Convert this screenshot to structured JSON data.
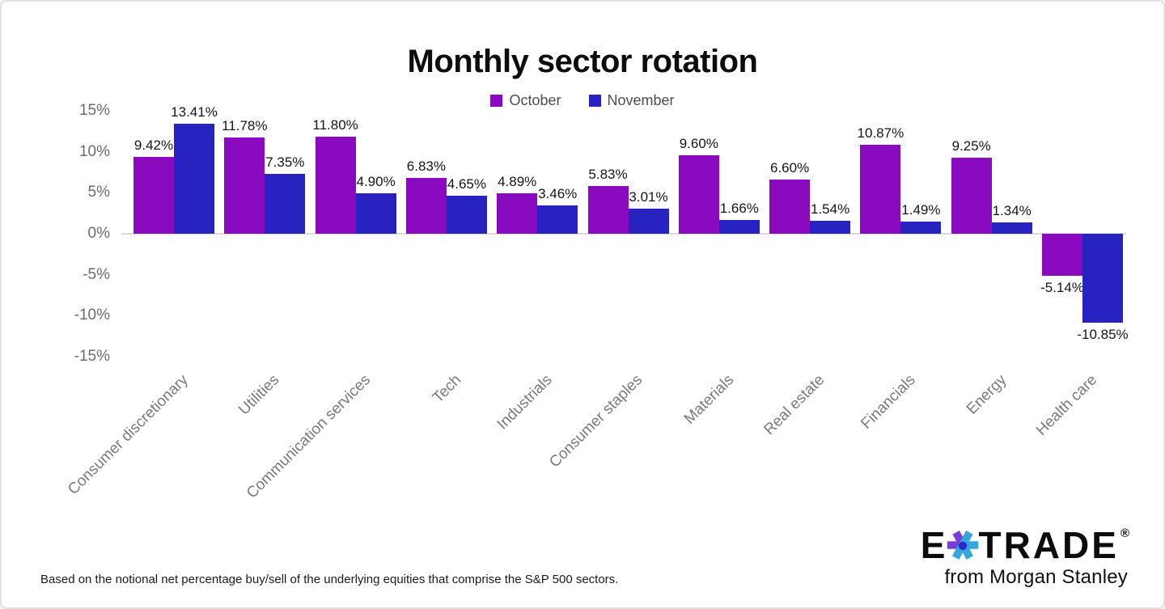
{
  "title": "Monthly sector rotation",
  "legend": {
    "items": [
      {
        "label": "October",
        "color": "#8a0abf"
      },
      {
        "label": "November",
        "color": "#2823c0"
      }
    ]
  },
  "chart_data": {
    "type": "bar",
    "title": "Monthly sector rotation",
    "categories": [
      "Consumer discretionary",
      "Utilities",
      "Communication services",
      "Tech",
      "Industrials",
      "Consumer staples",
      "Materials",
      "Real estate",
      "Financials",
      "Energy",
      "Health care"
    ],
    "series": [
      {
        "name": "October",
        "color": "#8a0abf",
        "values": [
          9.42,
          11.78,
          11.8,
          6.83,
          4.89,
          5.83,
          9.6,
          6.6,
          10.87,
          9.25,
          -5.14
        ],
        "labels": [
          "9.42%",
          "11.78%",
          "11.80%",
          "6.83%",
          "4.89%",
          "5.83%",
          "9.60%",
          "6.60%",
          "10.87%",
          "9.25%",
          "-5.14%"
        ]
      },
      {
        "name": "November",
        "color": "#2823c0",
        "values": [
          13.41,
          7.35,
          4.9,
          4.65,
          3.46,
          3.01,
          1.66,
          1.54,
          1.49,
          1.34,
          -10.85
        ],
        "labels": [
          "13.41%",
          "7.35%",
          "4.90%",
          "4.65%",
          "3.46%",
          "3.01%",
          "1.66%",
          "1.54%",
          "1.49%",
          "1.34%",
          "-10.85%"
        ]
      }
    ],
    "xlabel": "",
    "ylabel": "",
    "ylim": [
      -15,
      15
    ],
    "yticks": [
      {
        "value": 15,
        "label": "15%"
      },
      {
        "value": 10,
        "label": "10%"
      },
      {
        "value": 5,
        "label": "5%"
      },
      {
        "value": 0,
        "label": "0%"
      },
      {
        "value": -5,
        "label": "-5%"
      },
      {
        "value": -10,
        "label": "-10%"
      },
      {
        "value": -15,
        "label": "-15%"
      }
    ],
    "grid": false,
    "legend_position": "top-center",
    "axis_line_color": "#dbdbdb"
  },
  "footnote": "Based on the notional net percentage buy/sell of the underlying equities that comprise the S&P 500 sectors.",
  "logo": {
    "brand_left": "E",
    "brand_right": "TRADE",
    "registered_mark": "®",
    "tagline": "from Morgan Stanley",
    "star_purple": "#7b3bd8",
    "star_cyan": "#35a6dd",
    "star_navy": "#2a2ac8"
  }
}
